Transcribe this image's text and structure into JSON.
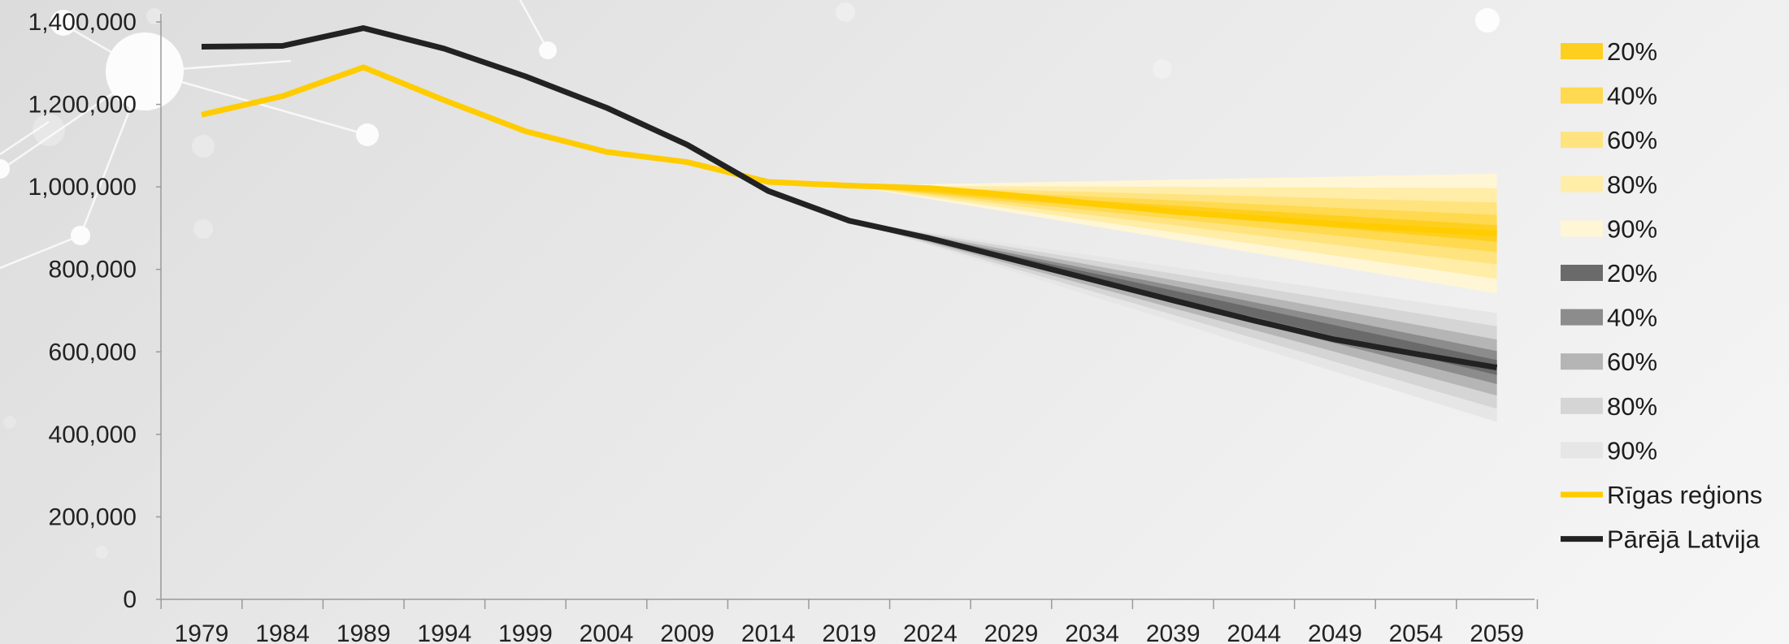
{
  "chart_data": {
    "type": "line",
    "title": "",
    "xlabel": "",
    "ylabel": "",
    "ylim": [
      0,
      1400000
    ],
    "y_ticks": [
      0,
      200000,
      400000,
      600000,
      800000,
      1000000,
      1200000,
      1400000
    ],
    "y_tick_labels": [
      "0",
      "200,000",
      "400,000",
      "600,000",
      "800,000",
      "1,000,000",
      "1,200,000",
      "1,400,000"
    ],
    "x_ticks": [
      "1979",
      "1984",
      "1989",
      "1994",
      "1999",
      "2004",
      "2009",
      "2014",
      "2019",
      "2024",
      "2029",
      "2034",
      "2039",
      "2044",
      "2049",
      "2054",
      "2059"
    ],
    "grid": false,
    "legend_position": "right",
    "series": [
      {
        "name": "Rīgas reģions",
        "color": "#FFCC00",
        "x": [
          1979,
          1984,
          1989,
          1994,
          1999,
          2004,
          2009,
          2014,
          2019,
          2024,
          2029,
          2034,
          2039,
          2044,
          2049,
          2054,
          2059
        ],
        "values": [
          1175000,
          1220000,
          1290000,
          1210000,
          1135000,
          1085000,
          1060000,
          1012000,
          1003000,
          997000,
          980000,
          960000,
          940000,
          925000,
          910000,
          898000,
          887000
        ]
      },
      {
        "name": "Pārējā Latvija",
        "color": "#222222",
        "x": [
          1979,
          1984,
          1989,
          1994,
          1999,
          2004,
          2009,
          2014,
          2019,
          2024,
          2029,
          2034,
          2039,
          2044,
          2049,
          2054,
          2059
        ],
        "values": [
          1340000,
          1342000,
          1385000,
          1335000,
          1268000,
          1192000,
          1102000,
          990000,
          918000,
          875000,
          825000,
          775000,
          725000,
          676000,
          630000,
          595000,
          562000
        ]
      }
    ],
    "fan_bands": [
      {
        "group": "Rīgas reģions",
        "x_start": 2019,
        "x_end": 2059,
        "anchor": 1003000,
        "end_center": 887000,
        "bands": [
          {
            "label": "90%",
            "color": "#FFF6D6",
            "half_width": 145000
          },
          {
            "label": "80%",
            "color": "#FFEDA8",
            "half_width": 110000
          },
          {
            "label": "60%",
            "color": "#FFE37F",
            "half_width": 75000
          },
          {
            "label": "40%",
            "color": "#FFD94F",
            "half_width": 45000
          },
          {
            "label": "20%",
            "color": "#FFCF1F",
            "half_width": 20000
          }
        ]
      },
      {
        "group": "Pārējā Latvija",
        "x_start": 2019,
        "x_end": 2059,
        "anchor": 918000,
        "end_center": 562000,
        "bands": [
          {
            "label": "90%",
            "color": "#E6E6E6",
            "half_width": 132000
          },
          {
            "label": "80%",
            "color": "#D5D5D5",
            "half_width": 100000
          },
          {
            "label": "60%",
            "color": "#B5B5B5",
            "half_width": 68000
          },
          {
            "label": "40%",
            "color": "#8C8C8C",
            "half_width": 40000
          },
          {
            "label": "20%",
            "color": "#6A6A6A",
            "half_width": 18000
          }
        ]
      }
    ],
    "legend": [
      {
        "label": "20%",
        "kind": "box",
        "color": "#FFCF1F"
      },
      {
        "label": "40%",
        "kind": "box",
        "color": "#FFD94F"
      },
      {
        "label": "60%",
        "kind": "box",
        "color": "#FFE37F"
      },
      {
        "label": "80%",
        "kind": "box",
        "color": "#FFEDA8"
      },
      {
        "label": "90%",
        "kind": "box",
        "color": "#FFF6D6"
      },
      {
        "label": "20%",
        "kind": "box",
        "color": "#6A6A6A"
      },
      {
        "label": "40%",
        "kind": "box",
        "color": "#8C8C8C"
      },
      {
        "label": "60%",
        "kind": "box",
        "color": "#B5B5B5"
      },
      {
        "label": "80%",
        "kind": "box",
        "color": "#D5D5D5"
      },
      {
        "label": "90%",
        "kind": "box",
        "color": "#E6E6E6"
      },
      {
        "label": "Rīgas reģions",
        "kind": "line",
        "color": "#FFCC00"
      },
      {
        "label": "Pārējā Latvija",
        "kind": "line",
        "color": "#222222"
      }
    ]
  }
}
